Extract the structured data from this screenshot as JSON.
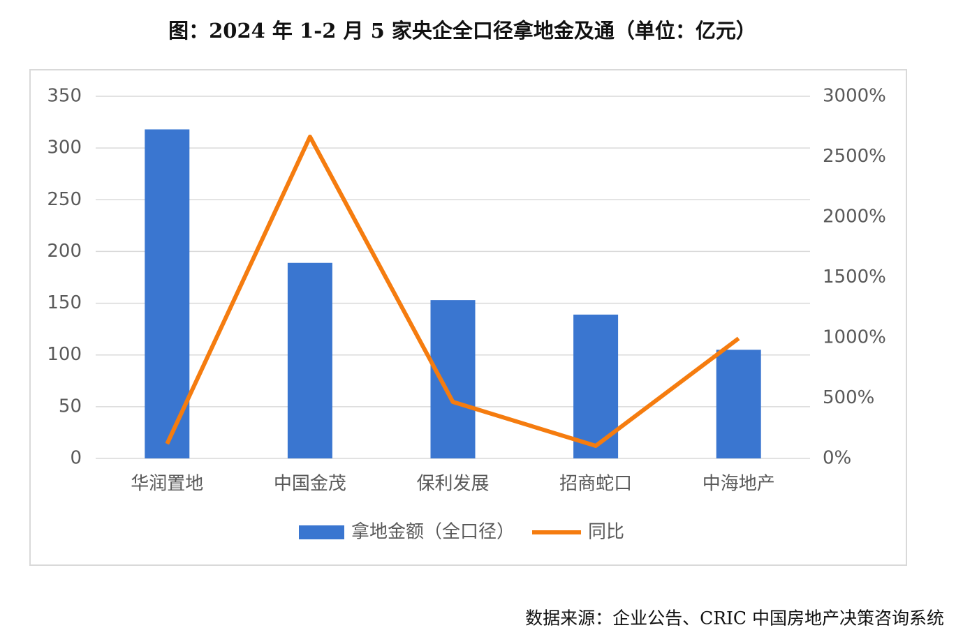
{
  "title": "图：2024 年 1-2 月 5 家央企全口径拿地金及通（单位：亿元）",
  "source": "数据来源：企业公告、CRIC 中国房地产决策咨询系统",
  "chart_data": {
    "type": "bar",
    "categories": [
      "华润置地",
      "中国金茂",
      "保利发展",
      "招商蛇口",
      "中海地产"
    ],
    "series": [
      {
        "name": "拿地金额（全口径）",
        "type": "bar",
        "color": "#3a76d0",
        "values": [
          318,
          189,
          153,
          139,
          105
        ]
      },
      {
        "name": "同比",
        "type": "line",
        "axis": "y2",
        "color": "#f57c0f",
        "values": [
          121,
          2665,
          468,
          104,
          994
        ]
      }
    ],
    "ylim": [
      0,
      350
    ],
    "yticks": [
      0,
      50,
      100,
      150,
      200,
      250,
      300,
      350
    ],
    "y2lim": [
      0,
      3000
    ],
    "y2ticks": [
      {
        "value": 0,
        "label": "0%"
      },
      {
        "value": 500,
        "label": "500%"
      },
      {
        "value": 1000,
        "label": "1000%"
      },
      {
        "value": 1500,
        "label": "1500%"
      },
      {
        "value": 2000,
        "label": "2000%"
      },
      {
        "value": 2500,
        "label": "2500%"
      },
      {
        "value": 3000,
        "label": "3000%"
      }
    ],
    "grid": true,
    "legend": "bottom"
  }
}
